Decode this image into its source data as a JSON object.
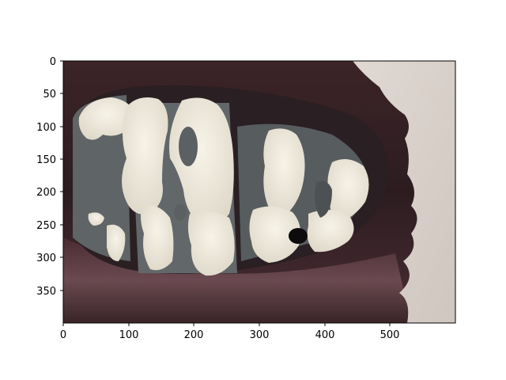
{
  "figure": {
    "x_ticks": [
      "0",
      "100",
      "200",
      "300",
      "400",
      "500"
    ],
    "y_ticks": [
      "0",
      "50",
      "100",
      "150",
      "200",
      "250",
      "300",
      "350"
    ],
    "image_extent": {
      "x": [
        0,
        600
      ],
      "y": [
        400,
        0
      ]
    },
    "image_description_colors": {
      "lip": "#3a2226",
      "lip_light": "#5a3a40",
      "mouth_dark": "#2a1f22",
      "tooth_gray": "#5d6264",
      "tooth_white": "#f1ecdf",
      "skin": "#d9d2cb",
      "frame": "#000000"
    }
  }
}
